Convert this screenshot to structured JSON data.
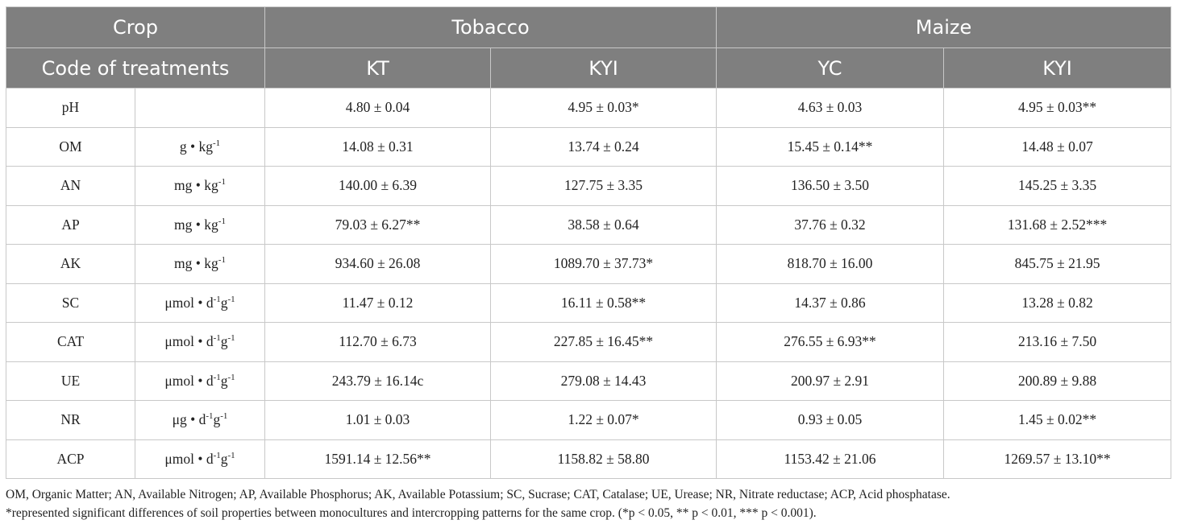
{
  "header": {
    "crop_label": "Crop",
    "tobacco": "Tobacco",
    "maize": "Maize",
    "code_label": "Code of treatments",
    "kt": "KT",
    "kyi_tobacco": "KYI",
    "yc": "YC",
    "kyi_maize": "KYI"
  },
  "rows": [
    {
      "name": "pH",
      "unit": "",
      "sup1": "",
      "mid": "",
      "sup2": "",
      "kt": "4.80 ± 0.04",
      "kyi_t": "4.95 ± 0.03*",
      "yc": "4.63 ± 0.03",
      "kyi_m": "4.95 ± 0.03**"
    },
    {
      "name": "OM",
      "unit": "g • kg",
      "sup1": "-1",
      "mid": "",
      "sup2": "",
      "kt": "14.08 ± 0.31",
      "kyi_t": "13.74 ± 0.24",
      "yc": "15.45 ± 0.14**",
      "kyi_m": "14.48 ± 0.07"
    },
    {
      "name": "AN",
      "unit": "mg • kg",
      "sup1": "-1",
      "mid": "",
      "sup2": "",
      "kt": "140.00 ± 6.39",
      "kyi_t": "127.75 ± 3.35",
      "yc": "136.50 ± 3.50",
      "kyi_m": "145.25 ± 3.35"
    },
    {
      "name": "AP",
      "unit": "mg • kg",
      "sup1": "-1",
      "mid": "",
      "sup2": "",
      "kt": "79.03 ± 6.27**",
      "kyi_t": "38.58 ± 0.64",
      "yc": "37.76 ± 0.32",
      "kyi_m": "131.68 ± 2.52***"
    },
    {
      "name": "AK",
      "unit": "mg • kg",
      "sup1": "-1",
      "mid": "",
      "sup2": "",
      "kt": "934.60 ± 26.08",
      "kyi_t": "1089.70 ± 37.73*",
      "yc": "818.70 ± 16.00",
      "kyi_m": "845.75 ± 21.95"
    },
    {
      "name": "SC",
      "unit": "μmol • d",
      "sup1": "-1",
      "mid": "g",
      "sup2": "-1",
      "kt": "11.47 ± 0.12",
      "kyi_t": "16.11 ± 0.58**",
      "yc": "14.37 ± 0.86",
      "kyi_m": "13.28 ± 0.82"
    },
    {
      "name": "CAT",
      "unit": "μmol • d",
      "sup1": "-1",
      "mid": "g",
      "sup2": "-1",
      "kt": "112.70 ± 6.73",
      "kyi_t": "227.85 ± 16.45**",
      "yc": "276.55 ± 6.93**",
      "kyi_m": "213.16 ± 7.50"
    },
    {
      "name": "UE",
      "unit": "μmol • d",
      "sup1": "-1",
      "mid": "g",
      "sup2": "-1",
      "kt": "243.79 ± 16.14c",
      "kyi_t": "279.08 ± 14.43",
      "yc": "200.97 ± 2.91",
      "kyi_m": "200.89 ± 9.88"
    },
    {
      "name": "NR",
      "unit": "μg • d",
      "sup1": "-1",
      "mid": "g",
      "sup2": "-1",
      "kt": "1.01 ± 0.03",
      "kyi_t": "1.22 ± 0.07*",
      "yc": "0.93 ± 0.05",
      "kyi_m": "1.45 ± 0.02**"
    },
    {
      "name": "ACP",
      "unit": "μmol • d",
      "sup1": "-1",
      "mid": "g",
      "sup2": "-1",
      "kt": "1591.14 ± 12.56**",
      "kyi_t": "1158.82 ± 58.80",
      "yc": "1153.42 ± 21.06",
      "kyi_m": "1269.57 ± 13.10**"
    }
  ],
  "notes": {
    "line1": "OM, Organic Matter; AN, Available Nitrogen; AP, Available Phosphorus; AK, Available Potassium; SC, Sucrase; CAT, Catalase; UE, Urease; NR, Nitrate reductase; ACP, Acid phosphatase.",
    "line2": "*represented significant differences of soil properties between monocultures and intercropping patterns for the same crop. (*p < 0.05, ** p < 0.01, *** p < 0.001)."
  }
}
